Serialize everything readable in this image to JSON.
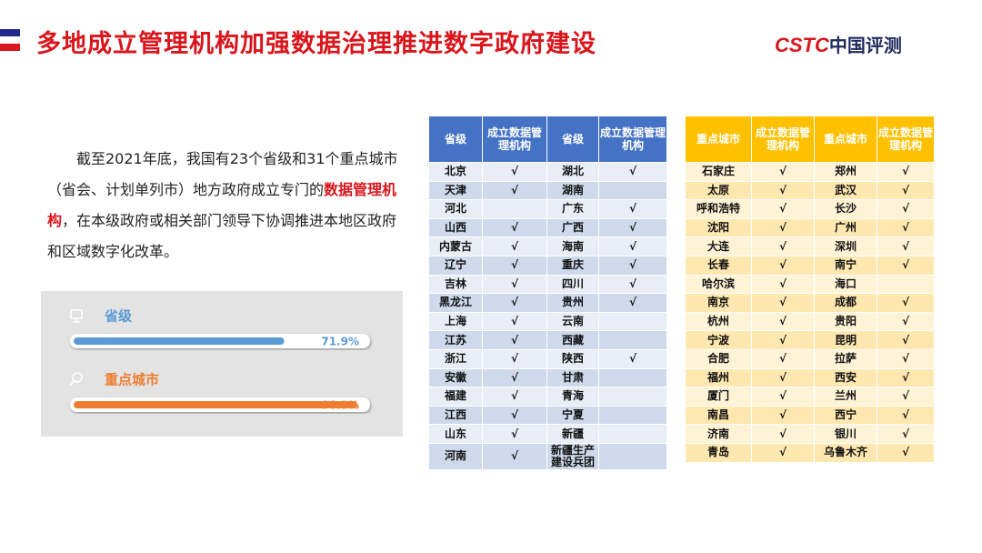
{
  "header": {
    "title": "多地成立管理机构加强数据治理推进数字政府建设",
    "logo_mark": "CSTC",
    "logo_text": "中国评测"
  },
  "paragraph": {
    "before": "截至2021年底，我国有23个省级和31个重点城市（省会、计划单列市）地方政府成立专门的",
    "highlight": "数据管理机构",
    "after": "，在本级政府或相关部门领导下协调推进本地区政府和区域数字化改革。"
  },
  "progress": [
    {
      "label": "省级",
      "value": 71.9,
      "value_label": "71.9%",
      "color": "#5b9bd5"
    },
    {
      "label": "重点城市",
      "value": 96.9,
      "value_label": "96.9%",
      "color": "#ed7d31"
    }
  ],
  "tables": [
    {
      "header": [
        "省级",
        "成立数据管理机构",
        "省级",
        "成立数据管理机构"
      ],
      "rows": [
        [
          "北京",
          "√",
          "湖北",
          "√"
        ],
        [
          "天津",
          "√",
          "湖南",
          null
        ],
        [
          "河北",
          null,
          "广东",
          "√"
        ],
        [
          "山西",
          "√",
          "广西",
          "√"
        ],
        [
          "内蒙古",
          "√",
          "海南",
          "√"
        ],
        [
          "辽宁",
          "√",
          "重庆",
          "√"
        ],
        [
          "吉林",
          "√",
          "四川",
          "√"
        ],
        [
          "黑龙江",
          "√",
          "贵州",
          "√"
        ],
        [
          "上海",
          "√",
          "云南",
          null
        ],
        [
          "江苏",
          "√",
          "西藏",
          null
        ],
        [
          "浙江",
          "√",
          "陕西",
          "√"
        ],
        [
          "安徽",
          "√",
          "甘肃",
          null
        ],
        [
          "福建",
          "√",
          "青海",
          null
        ],
        [
          "江西",
          "√",
          "宁夏",
          null
        ],
        [
          "山东",
          "√",
          "新疆",
          null
        ],
        [
          "河南",
          "√",
          "新疆生产建设兵团",
          null
        ]
      ]
    },
    {
      "header": [
        "重点城市",
        "成立数据管理机构",
        "重点城市",
        "成立数据管理机构"
      ],
      "rows": [
        [
          "石家庄",
          "√",
          "郑州",
          "√"
        ],
        [
          "太原",
          "√",
          "武汉",
          "√"
        ],
        [
          "呼和浩特",
          "√",
          "长沙",
          "√"
        ],
        [
          "沈阳",
          "√",
          "广州",
          "√"
        ],
        [
          "大连",
          "√",
          "深圳",
          "√"
        ],
        [
          "长春",
          "√",
          "南宁",
          "√"
        ],
        [
          "哈尔滨",
          "√",
          "海口",
          null
        ],
        [
          "南京",
          "√",
          "成都",
          "√"
        ],
        [
          "杭州",
          "√",
          "贵阳",
          "√"
        ],
        [
          "宁波",
          "√",
          "昆明",
          "√"
        ],
        [
          "合肥",
          "√",
          "拉萨",
          "√"
        ],
        [
          "福州",
          "√",
          "西安",
          "√"
        ],
        [
          "厦门",
          "√",
          "兰州",
          "√"
        ],
        [
          "南昌",
          "√",
          "西宁",
          "√"
        ],
        [
          "济南",
          "√",
          "银川",
          "√"
        ],
        [
          "青岛",
          "√",
          "乌鲁木齐",
          "√"
        ]
      ]
    }
  ]
}
